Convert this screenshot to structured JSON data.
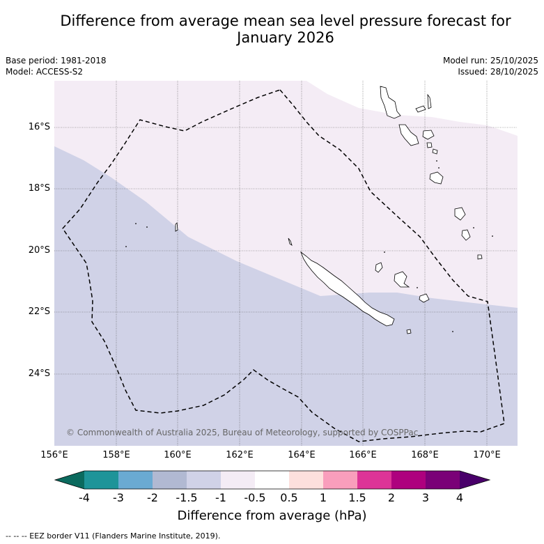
{
  "header": {
    "title_line1": "Difference from average mean sea level pressure forecast for",
    "title_line2": "January 2026",
    "base_period": "Base period: 1981-2018",
    "model": "Model: ACCESS-S2",
    "model_run": "Model run: 25/10/2025",
    "issued": "Issued: 28/10/2025"
  },
  "map": {
    "latitude_labels": [
      "16°S",
      "18°S",
      "20°S",
      "22°S",
      "24°S"
    ],
    "longitude_labels": [
      "156°E",
      "158°E",
      "160°E",
      "162°E",
      "164°E",
      "166°E",
      "168°E",
      "170°E"
    ],
    "copyright": "© Commonwealth of Australia 2025, Bureau of Meteorology, supported by COSPPac",
    "region_values": {
      "north_region_band": "-1 to -0.5",
      "south_region_band": "-1.5 to -1"
    }
  },
  "legend": {
    "title": "Difference from average (hPa)",
    "ticks": [
      "-4",
      "-3",
      "-2",
      "-1.5",
      "-1",
      "-0.5",
      "0.5",
      "1",
      "1.5",
      "2",
      "3",
      "4"
    ],
    "colors": {
      "below_min": "#0b6a5e",
      "b1": "#1e9499",
      "b2": "#6aaad2",
      "b3": "#b1b9d2",
      "b4": "#d0d2e7",
      "b5": "#f4ecf5",
      "b6": "#ffffff",
      "b7": "#fde0dd",
      "b8": "#f99ebc",
      "b9": "#dd3497",
      "b10": "#ae017e",
      "b11": "#7a0177",
      "above_max": "#49006a"
    }
  },
  "footer": {
    "eez_note": "--  --  -- EEZ border V11 (Flanders Marine Institute, 2019)."
  }
}
